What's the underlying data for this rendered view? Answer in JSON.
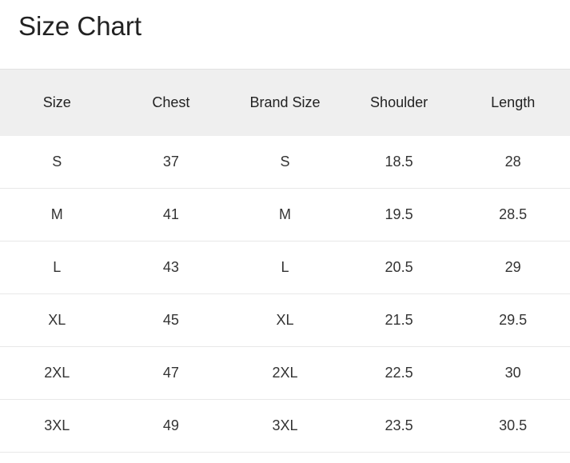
{
  "title": "Size Chart",
  "headers": [
    "Size",
    "Chest",
    "Brand Size",
    "Shoulder",
    "Length"
  ],
  "rows": [
    [
      "S",
      "37",
      "S",
      "18.5",
      "28"
    ],
    [
      "M",
      "41",
      "M",
      "19.5",
      "28.5"
    ],
    [
      "L",
      "43",
      "L",
      "20.5",
      "29"
    ],
    [
      "XL",
      "45",
      "XL",
      "21.5",
      "29.5"
    ],
    [
      "2XL",
      "47",
      "2XL",
      "22.5",
      "30"
    ],
    [
      "3XL",
      "49",
      "3XL",
      "23.5",
      "30.5"
    ]
  ]
}
